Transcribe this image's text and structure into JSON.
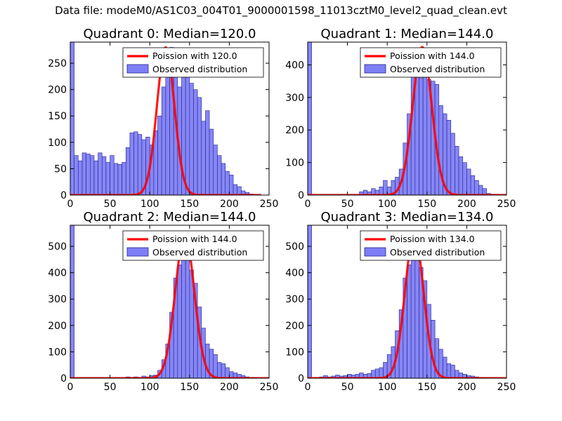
{
  "suptitle": "Data file: modeM0/AS1C03_004T01_9000001598_11013cztM0_level2_quad_clean.evt",
  "colors": {
    "bar_fill": "#7f7ff5",
    "bar_edge": "#24248f",
    "fit": "#ff0000"
  },
  "chart_data": [
    {
      "type": "bar",
      "title": "Quadrant 0: Median=120.0",
      "median": 120.0,
      "xlim": [
        0,
        250
      ],
      "ylim": [
        0,
        290
      ],
      "xticks": [
        0,
        50,
        100,
        150,
        200,
        250
      ],
      "yticks": [
        0,
        50,
        100,
        150,
        200,
        250
      ],
      "bin_width": 5,
      "bins_x": [
        0,
        5,
        10,
        15,
        20,
        25,
        30,
        35,
        40,
        45,
        50,
        55,
        60,
        65,
        70,
        75,
        80,
        85,
        90,
        95,
        100,
        105,
        110,
        115,
        120,
        125,
        130,
        135,
        140,
        145,
        150,
        155,
        160,
        165,
        170,
        175,
        180,
        185,
        190,
        195,
        200,
        205,
        210,
        215,
        220,
        225
      ],
      "bins_y": [
        290,
        75,
        65,
        80,
        78,
        75,
        65,
        80,
        73,
        62,
        75,
        60,
        58,
        62,
        90,
        118,
        120,
        115,
        105,
        110,
        95,
        122,
        150,
        205,
        255,
        280,
        250,
        205,
        232,
        250,
        212,
        200,
        185,
        140,
        160,
        125,
        95,
        75,
        60,
        45,
        38,
        20,
        16,
        8,
        5,
        2
      ],
      "legend": {
        "fit_label": "Poission with 120.0",
        "hist_label": "Observed distribution"
      },
      "fit_peak": 280
    },
    {
      "type": "bar",
      "title": "Quadrant 1: Median=144.0",
      "median": 144.0,
      "xlim": [
        0,
        250
      ],
      "ylim": [
        0,
        470
      ],
      "xticks": [
        0,
        50,
        100,
        150,
        200,
        250
      ],
      "yticks": [
        0,
        100,
        200,
        300,
        400
      ],
      "bin_width": 5,
      "bins_x": [
        0,
        65,
        70,
        75,
        80,
        85,
        90,
        95,
        100,
        105,
        110,
        115,
        120,
        125,
        130,
        135,
        140,
        145,
        150,
        155,
        160,
        165,
        170,
        175,
        180,
        185,
        190,
        195,
        200,
        205,
        210,
        215,
        220,
        225,
        230
      ],
      "bins_y": [
        470,
        10,
        15,
        10,
        20,
        15,
        25,
        45,
        25,
        45,
        55,
        80,
        160,
        250,
        390,
        430,
        360,
        450,
        355,
        350,
        340,
        275,
        250,
        230,
        190,
        150,
        118,
        100,
        80,
        60,
        45,
        30,
        20,
        5,
        2
      ],
      "legend": {
        "fit_label": "Poission with 144.0",
        "hist_label": "Observed distribution"
      },
      "fit_peak": 455
    },
    {
      "type": "bar",
      "title": "Quadrant 2: Median=144.0",
      "median": 144.0,
      "xlim": [
        0,
        250
      ],
      "ylim": [
        0,
        580
      ],
      "xticks": [
        0,
        50,
        100,
        150,
        200,
        250
      ],
      "yticks": [
        0,
        100,
        200,
        300,
        400,
        500
      ],
      "bin_width": 5,
      "bins_x": [
        0,
        70,
        75,
        80,
        85,
        90,
        95,
        100,
        105,
        110,
        115,
        120,
        125,
        130,
        135,
        140,
        145,
        150,
        155,
        160,
        165,
        170,
        175,
        180,
        185,
        190,
        195,
        200,
        205,
        210,
        215,
        220,
        225,
        230
      ],
      "bins_y": [
        580,
        5,
        3,
        5,
        3,
        8,
        5,
        10,
        12,
        30,
        70,
        130,
        250,
        380,
        430,
        500,
        480,
        410,
        360,
        270,
        190,
        130,
        110,
        90,
        60,
        55,
        40,
        25,
        20,
        15,
        10,
        5,
        3,
        2
      ],
      "legend": {
        "fit_label": "Poission with 144.0",
        "hist_label": "Observed distribution"
      },
      "fit_peak": 545
    },
    {
      "type": "bar",
      "title": "Quadrant 3: Median=134.0",
      "median": 134.0,
      "xlim": [
        0,
        250
      ],
      "ylim": [
        0,
        580
      ],
      "xticks": [
        0,
        50,
        100,
        150,
        200,
        250
      ],
      "yticks": [
        0,
        100,
        200,
        300,
        400,
        500
      ],
      "bin_width": 5,
      "bins_x": [
        0,
        10,
        15,
        20,
        25,
        30,
        35,
        40,
        45,
        50,
        55,
        60,
        65,
        70,
        75,
        80,
        85,
        90,
        95,
        100,
        105,
        110,
        115,
        120,
        125,
        130,
        135,
        140,
        145,
        150,
        155,
        160,
        165,
        170,
        175,
        180,
        185,
        190,
        195,
        200,
        205,
        210,
        215,
        220,
        225
      ],
      "bins_y": [
        580,
        3,
        5,
        10,
        5,
        8,
        12,
        8,
        10,
        15,
        12,
        15,
        20,
        15,
        18,
        30,
        35,
        40,
        60,
        90,
        120,
        180,
        260,
        380,
        430,
        500,
        480,
        420,
        370,
        280,
        220,
        150,
        110,
        80,
        55,
        50,
        30,
        20,
        15,
        10,
        8,
        5,
        3,
        2,
        1
      ],
      "legend": {
        "fit_label": "Poission with 134.0",
        "hist_label": "Observed distribution"
      },
      "fit_peak": 548
    }
  ]
}
